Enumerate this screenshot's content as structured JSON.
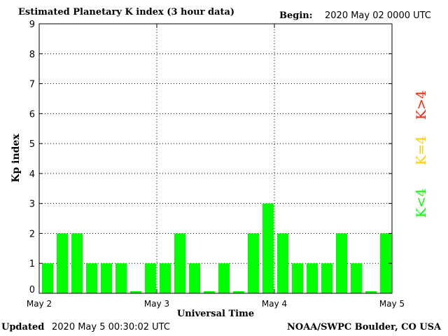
{
  "header": {
    "title": "Estimated Planetary K index (3 hour data)",
    "begin_label": "Begin:",
    "begin_value": "2020 May 02 0000 UTC"
  },
  "footer": {
    "updated_label": "Updated",
    "updated_value": "2020 May  5 00:30:02 UTC",
    "credit": "NOAA/SWPC Boulder, CO USA"
  },
  "legend": {
    "items": [
      {
        "label": "K<4",
        "color": "#00ff00"
      },
      {
        "label": "K=4",
        "color": "#ffcc00"
      },
      {
        "label": "K>4",
        "color": "#ff2200"
      }
    ]
  },
  "chart_data": {
    "type": "bar",
    "title": "Estimated Planetary K index (3 hour data)",
    "xlabel": "Universal Time",
    "ylabel": "Kp index",
    "ylim": [
      0,
      9
    ],
    "yticks": [
      0,
      1,
      2,
      3,
      4,
      5,
      6,
      7,
      8,
      9
    ],
    "xticks": [
      "May 2",
      "May 3",
      "May 4",
      "May 5"
    ],
    "grid": true,
    "bar_color": "#00ff00",
    "values": [
      1,
      2,
      2,
      1,
      1,
      1,
      0.07,
      1,
      1,
      2,
      1,
      0.07,
      1,
      0.07,
      2,
      3,
      2,
      1,
      1,
      1,
      2,
      1,
      0.07,
      2
    ]
  }
}
